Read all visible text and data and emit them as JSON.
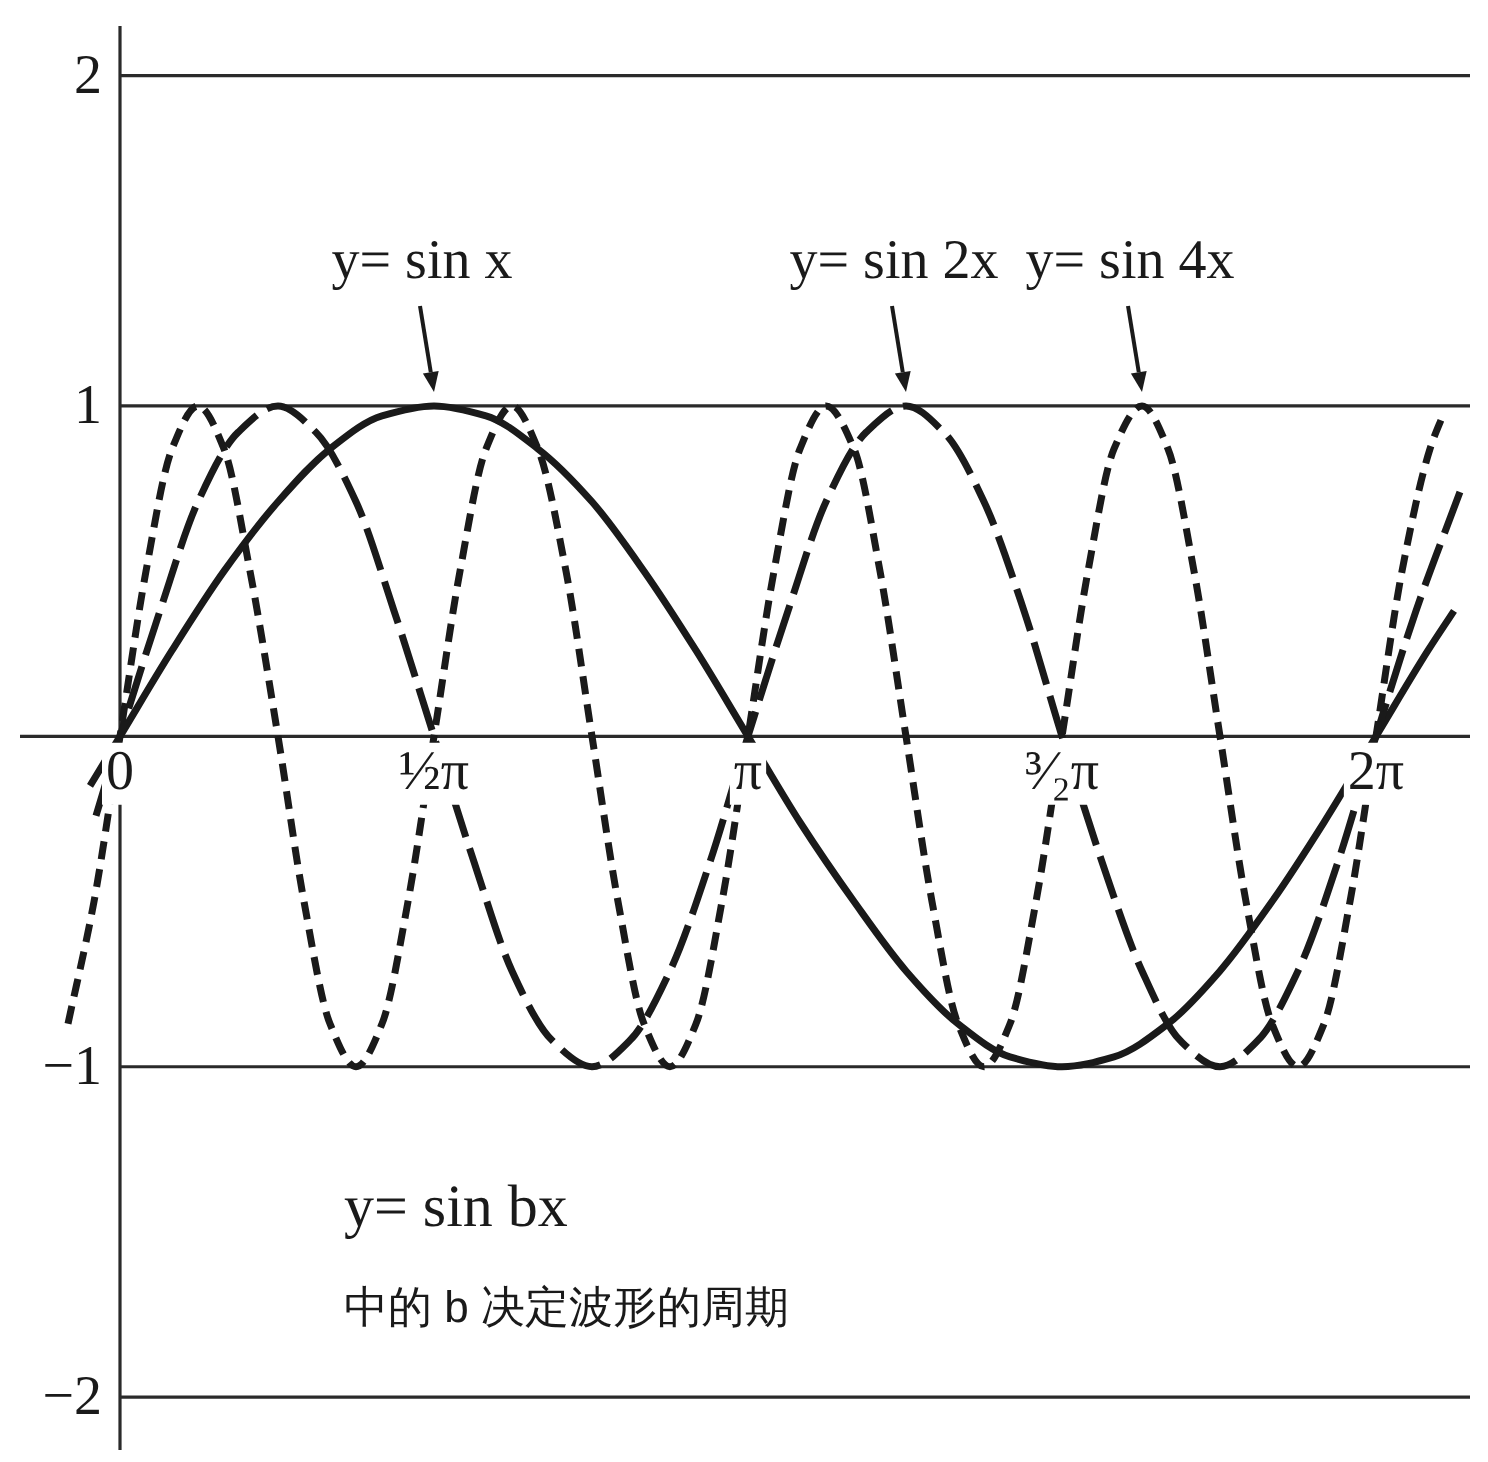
{
  "chart_data": {
    "type": "line",
    "series": [
      {
        "color": "#1a1a1a",
        "line_style": "solid",
        "x": [
          -0.15,
          0,
          0.26,
          0.52,
          0.79,
          1.05,
          1.31,
          1.57,
          1.83,
          2.09,
          2.36,
          2.62,
          2.88,
          3.14,
          3.4,
          3.67,
          3.93,
          4.19,
          4.45,
          4.71,
          4.97,
          5.24,
          5.5,
          5.76,
          6.02,
          6.28,
          6.54,
          6.67
        ],
        "values": [
          -0.15,
          0,
          0.26,
          0.5,
          0.71,
          0.87,
          0.97,
          1,
          0.97,
          0.87,
          0.71,
          0.5,
          0.26,
          0,
          -0.26,
          -0.5,
          -0.71,
          -0.87,
          -0.97,
          -1,
          -0.97,
          -0.87,
          -0.71,
          -0.5,
          -0.26,
          0,
          0.26,
          0.38
        ]
      },
      {
        "color": "#1a1a1a",
        "line_style": "dashed",
        "x": [
          -0.12,
          0,
          0.2,
          0.39,
          0.59,
          0.79,
          0.98,
          1.18,
          1.37,
          1.57,
          1.77,
          1.96,
          2.16,
          2.36,
          2.55,
          2.75,
          2.95,
          3.14,
          3.34,
          3.53,
          3.73,
          3.93,
          4.12,
          4.32,
          4.52,
          4.71,
          4.91,
          5.11,
          5.3,
          5.5,
          5.69,
          5.89,
          6.09,
          6.28,
          6.48,
          6.7
        ],
        "values": [
          -0.24,
          0,
          0.38,
          0.71,
          0.92,
          1,
          0.92,
          0.71,
          0.38,
          0,
          -0.38,
          -0.71,
          -0.92,
          -1,
          -0.92,
          -0.71,
          -0.38,
          0,
          0.38,
          0.71,
          0.92,
          1,
          0.92,
          0.71,
          0.38,
          0,
          -0.38,
          -0.71,
          -0.92,
          -1,
          -0.92,
          -0.71,
          -0.38,
          0,
          0.38,
          0.74
        ]
      },
      {
        "color": "#1a1a1a",
        "line_style": "dotted",
        "x": [
          -0.26,
          -0.13,
          0,
          0.13,
          0.26,
          0.39,
          0.52,
          0.65,
          0.79,
          0.92,
          1.05,
          1.18,
          1.31,
          1.44,
          1.57,
          1.7,
          1.83,
          1.96,
          2.09,
          2.23,
          2.36,
          2.49,
          2.62,
          2.75,
          2.88,
          3.01,
          3.14,
          3.27,
          3.4,
          3.53,
          3.67,
          3.8,
          3.93,
          4.06,
          4.19,
          4.32,
          4.45,
          4.58,
          4.71,
          4.84,
          4.97,
          5.11,
          5.24,
          5.37,
          5.5,
          5.63,
          5.76,
          5.89,
          6.02,
          6.15,
          6.28,
          6.41,
          6.55,
          6.62
        ],
        "values": [
          -0.87,
          -0.5,
          0,
          0.5,
          0.87,
          1,
          0.87,
          0.5,
          0,
          -0.5,
          -0.87,
          -1,
          -0.87,
          -0.5,
          0,
          0.5,
          0.87,
          1,
          0.87,
          0.5,
          0,
          -0.5,
          -0.87,
          -1,
          -0.87,
          -0.5,
          0,
          0.5,
          0.87,
          1,
          0.87,
          0.5,
          0,
          -0.5,
          -0.87,
          -1,
          -0.87,
          -0.5,
          0,
          0.5,
          0.87,
          1,
          0.87,
          0.5,
          0,
          -0.5,
          -0.87,
          -1,
          -0.87,
          -0.5,
          0,
          0.5,
          0.87,
          0.98
        ]
      }
    ],
    "xlim": [
      -0.5,
      6.75
    ],
    "ylim": [
      -2.16,
      2.15
    ],
    "xticks": [
      0,
      {
        "value": 1.57,
        "label": "½π"
      },
      {
        "value": 3.14,
        "label": "π"
      },
      {
        "value": 4.71,
        "label": "³⁄₂π"
      },
      {
        "value": 6.28,
        "label": "2π"
      }
    ],
    "yticks": [
      {
        "value": -2,
        "label": "−2"
      },
      {
        "value": -1,
        "label": "−1"
      },
      1,
      2
    ],
    "grid": "y",
    "annotations": [
      {
        "text": "y= sin x",
        "x": 1.57,
        "y": 1
      },
      {
        "text": "y= sin 2x",
        "x": 3.93,
        "y": 1
      },
      {
        "text": "y= sin 4x",
        "x": 5.11,
        "y": 1
      },
      "y= sin bx",
      "中的 b 决定波形的周期"
    ]
  }
}
